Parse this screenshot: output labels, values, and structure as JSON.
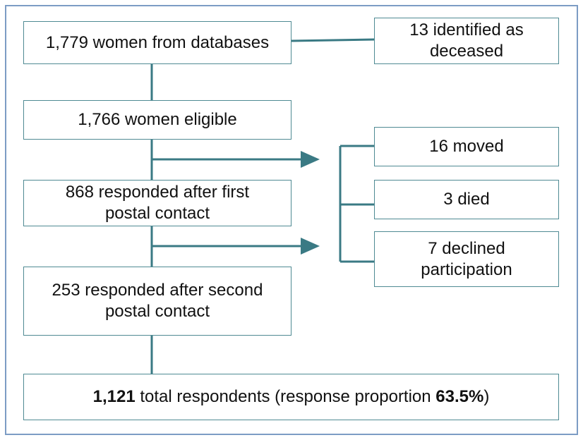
{
  "nodes": [
    {
      "lines": [
        "1,779 women from databases"
      ]
    },
    {
      "lines": [
        "13 identified as",
        "deceased"
      ]
    },
    {
      "lines": [
        "1,766 women eligible"
      ]
    },
    {
      "lines": [
        "16 moved"
      ]
    },
    {
      "lines": [
        "868 responded after first",
        "postal contact"
      ]
    },
    {
      "lines": [
        "3 died"
      ]
    },
    {
      "lines": [
        "7 declined",
        "participation"
      ]
    },
    {
      "lines": [
        "253 responded after second",
        "postal contact"
      ]
    },
    {
      "parts": [
        "1,121",
        " total respondents (response proportion ",
        "63.5%",
        ")"
      ]
    }
  ]
}
